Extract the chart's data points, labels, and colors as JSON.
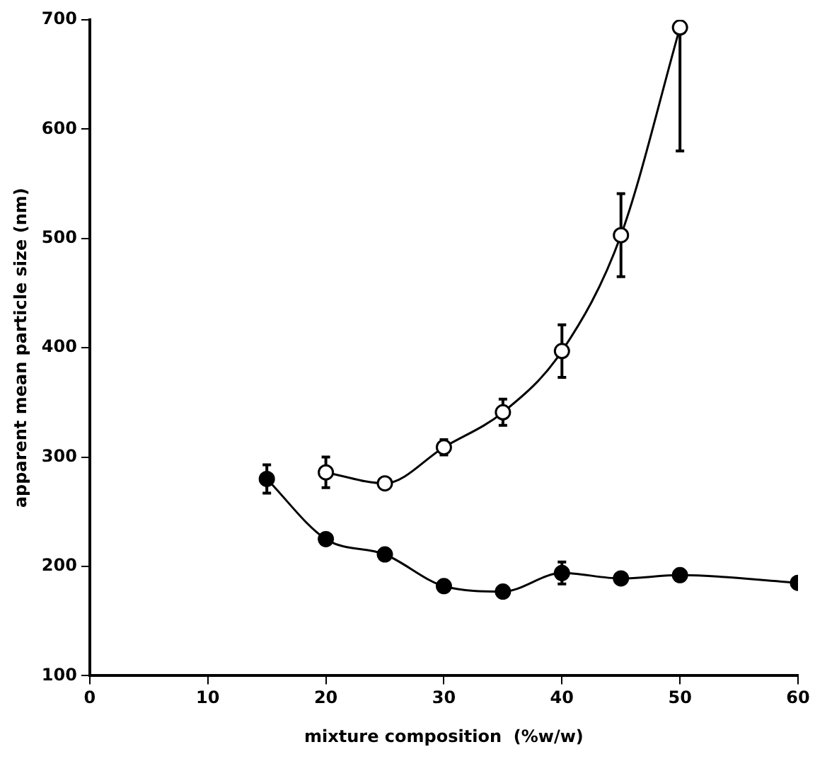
{
  "chart_data": {
    "type": "line",
    "xlabel": "mixture composition  (%w/w)",
    "ylabel": "apparent mean particle size (nm)",
    "xlim": [
      0,
      60
    ],
    "xticks": [
      0,
      10,
      20,
      30,
      40,
      50,
      60
    ],
    "ylim": [
      100,
      700
    ],
    "yticks": [
      100,
      200,
      300,
      400,
      500,
      600,
      700
    ],
    "grid": false,
    "legend": false,
    "marker": "circle",
    "line_style": "solid",
    "series": [
      {
        "color": "#ffffff",
        "x": [
          20,
          25,
          30,
          35,
          40,
          45,
          50
        ],
        "values": [
          286,
          276,
          309,
          341,
          397,
          503,
          693
        ],
        "errors": [
          14,
          null,
          7,
          12,
          24,
          38,
          [
            580,
            693
          ]
        ]
      },
      {
        "color": "#000000",
        "x": [
          15,
          20,
          25,
          30,
          35,
          40,
          45,
          50,
          60
        ],
        "values": [
          280,
          225,
          211,
          182,
          177,
          194,
          189,
          192,
          185
        ],
        "errors": [
          13,
          null,
          null,
          null,
          null,
          10,
          null,
          null,
          null
        ]
      }
    ]
  }
}
